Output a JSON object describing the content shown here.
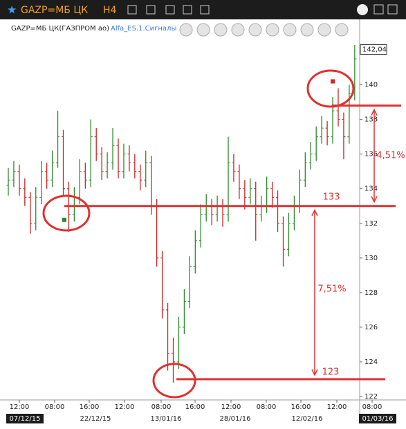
{
  "toolbar": {
    "ticker": "GAZP=МБ ЦК",
    "timeframe": "H4",
    "instrument": "GAZP=МБ ЦК(ГАЗПРОМ ао)",
    "indicator": "Alfa_ES.1.Сигналы"
  },
  "chart_data": {
    "type": "ohlc",
    "up_color": "#2a8a2a",
    "down_color": "#cc2222",
    "ylim": [
      121.8,
      143.7
    ],
    "yticks": [
      122,
      124,
      126,
      128,
      130,
      132,
      134,
      136,
      138,
      140
    ],
    "last": 142.04,
    "last_label": "142,04",
    "x_labels": [
      "12:00",
      "08:00",
      "16:00",
      "12:00",
      "08:00",
      "16:00",
      "12:00",
      "08:00",
      "16:00",
      "12:00",
      "08:00"
    ],
    "date_labels": [
      "07/12/15",
      "22/12/15",
      "13/01/16",
      "28/01/16",
      "12/02/16",
      "01/03/16"
    ],
    "ohlc": [
      [
        134.2,
        135.2,
        133.6,
        134.5
      ],
      [
        134.5,
        135.6,
        134.1,
        135
      ],
      [
        135,
        135.4,
        133.6,
        134
      ],
      [
        134,
        134.6,
        133,
        133.5
      ],
      [
        133.5,
        133.8,
        131.4,
        132
      ],
      [
        132,
        134.1,
        131.6,
        133.5
      ],
      [
        133.5,
        135.6,
        133.1,
        135
      ],
      [
        135,
        135.5,
        134,
        134.5
      ],
      [
        134.5,
        136.2,
        134.1,
        135.5
      ],
      [
        135.5,
        138.5,
        135.2,
        137
      ],
      [
        137,
        137.4,
        133.6,
        134
      ],
      [
        134,
        134.4,
        131.5,
        132.5
      ],
      [
        132.5,
        134.1,
        132.1,
        133.5
      ],
      [
        133.5,
        135.7,
        133.1,
        135
      ],
      [
        135,
        135.5,
        134,
        134.5
      ],
      [
        134.5,
        138,
        134.1,
        137
      ],
      [
        137,
        137.5,
        135.6,
        136
      ],
      [
        136,
        136.4,
        134.5,
        135
      ],
      [
        135,
        136.1,
        134.6,
        135.5
      ],
      [
        135.5,
        137.5,
        135.1,
        136.5
      ],
      [
        136.5,
        136.9,
        134.6,
        135
      ],
      [
        135,
        136.6,
        134.6,
        136
      ],
      [
        136,
        136.5,
        135,
        135.5
      ],
      [
        135.5,
        136,
        134.6,
        135
      ],
      [
        135,
        135.4,
        133.9,
        134.5
      ],
      [
        134.5,
        136.2,
        134.1,
        135.5
      ],
      [
        135.5,
        135.9,
        132.5,
        133
      ],
      [
        133,
        133.4,
        129.5,
        130
      ],
      [
        130,
        130.4,
        126.5,
        127
      ],
      [
        127,
        127.4,
        123.5,
        124.5
      ],
      [
        124.5,
        125.4,
        122.8,
        124
      ],
      [
        124,
        126.6,
        123.6,
        126
      ],
      [
        126,
        128.2,
        125.6,
        127.5
      ],
      [
        127.5,
        130.1,
        127.1,
        129.5
      ],
      [
        129.5,
        131.6,
        129.1,
        131
      ],
      [
        131,
        133.1,
        130.6,
        132.5
      ],
      [
        132.5,
        133.7,
        132.1,
        133
      ],
      [
        133,
        133.4,
        131.9,
        132.5
      ],
      [
        132.5,
        133.6,
        132.1,
        133
      ],
      [
        133,
        133.4,
        131.8,
        132.5
      ],
      [
        132.5,
        137,
        132.1,
        135.5
      ],
      [
        135.5,
        136,
        134.4,
        135
      ],
      [
        135,
        135.4,
        133.4,
        134
      ],
      [
        134,
        134.5,
        132.8,
        133.5
      ],
      [
        133.5,
        134.6,
        133.1,
        134
      ],
      [
        134,
        134.4,
        131,
        132.5
      ],
      [
        132.5,
        133.6,
        132.1,
        133
      ],
      [
        133,
        134.7,
        132.6,
        134
      ],
      [
        134,
        134.4,
        132.9,
        133.5
      ],
      [
        133.5,
        133.9,
        131.5,
        132
      ],
      [
        132,
        132.4,
        129.5,
        130.5
      ],
      [
        130.5,
        132.6,
        130.1,
        132
      ],
      [
        132,
        133.6,
        131.6,
        133
      ],
      [
        133,
        135.1,
        132.6,
        134.5
      ],
      [
        134.5,
        136.1,
        134.1,
        135.5
      ],
      [
        135.5,
        136.7,
        135.1,
        136
      ],
      [
        136,
        137.6,
        135.6,
        137
      ],
      [
        137,
        138.2,
        136.6,
        137.5
      ],
      [
        137.5,
        137.9,
        136.5,
        137
      ],
      [
        137,
        139.3,
        136.6,
        138.5
      ],
      [
        138.5,
        139.8,
        137.6,
        138
      ],
      [
        138,
        138.4,
        135.7,
        137
      ],
      [
        137,
        140,
        136.6,
        139.5
      ],
      [
        139.5,
        142.3,
        139.1,
        141.5
      ]
    ],
    "signals": [
      {
        "value": 132.2,
        "color": "#2a8a2a"
      },
      {
        "value": 140.2,
        "color": "#e02020"
      }
    ],
    "annotation_color": "#e03030",
    "levels": [
      {
        "value": 133,
        "label": "133"
      },
      {
        "value": 123,
        "label": "123"
      },
      {
        "value": 138.8
      }
    ],
    "moves": [
      {
        "label": "7,51%"
      },
      {
        "label": "4,51%"
      }
    ]
  }
}
